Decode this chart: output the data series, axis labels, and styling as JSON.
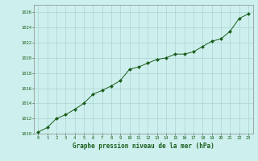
{
  "x": [
    0,
    1,
    2,
    3,
    4,
    5,
    6,
    7,
    8,
    9,
    10,
    11,
    12,
    13,
    14,
    15,
    16,
    17,
    18,
    19,
    20,
    21,
    22,
    23
  ],
  "y": [
    1010.2,
    1010.8,
    1012.0,
    1012.5,
    1013.2,
    1014.0,
    1015.2,
    1015.7,
    1016.3,
    1017.0,
    1018.5,
    1018.8,
    1019.3,
    1019.8,
    1020.0,
    1020.5,
    1020.5,
    1020.8,
    1021.5,
    1022.2,
    1022.5,
    1023.5,
    1025.2,
    1025.8
  ],
  "ylim": [
    1010,
    1027
  ],
  "yticks": [
    1010,
    1012,
    1014,
    1016,
    1018,
    1020,
    1022,
    1024,
    1026
  ],
  "xticks": [
    0,
    1,
    2,
    3,
    4,
    5,
    6,
    7,
    8,
    9,
    10,
    11,
    12,
    13,
    14,
    15,
    16,
    17,
    18,
    19,
    20,
    21,
    22,
    23
  ],
  "xlabel": "Graphe pression niveau de la mer (hPa)",
  "line_color": "#1a5c1a",
  "marker_color": "#1a5c1a",
  "bg_color": "#cdf0ee",
  "grid_color": "#aad4d0",
  "title_color": "#1a5c1a",
  "tick_color": "#1a5c1a",
  "axis_color": "#888888"
}
